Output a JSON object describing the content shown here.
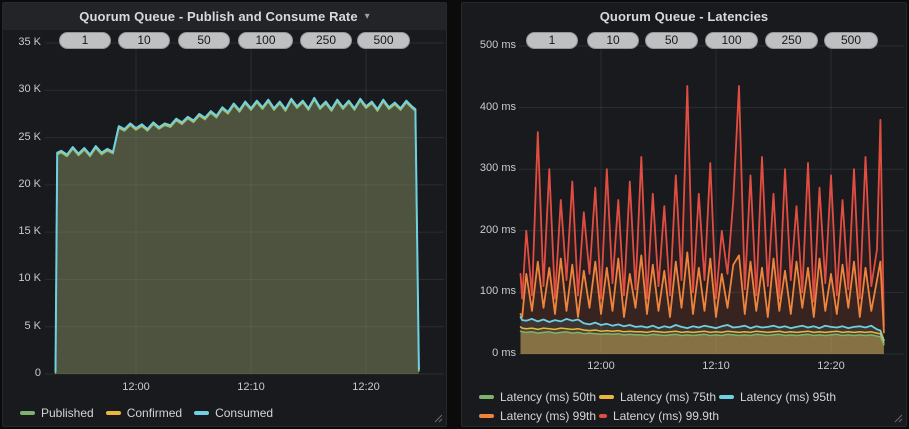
{
  "panels": [
    {
      "title": "Quorum Queue - Publish and Consume Rate",
      "menu_caret": "▾",
      "pills": [
        "1",
        "10",
        "50",
        "100",
        "250",
        "500"
      ],
      "y_axis": {
        "ticks": [
          "35 K",
          "30 K",
          "25 K",
          "20 K",
          "15 K",
          "10 K",
          "5 K",
          "0"
        ]
      },
      "x_axis": {
        "ticks": [
          "12:00",
          "12:10",
          "12:20"
        ]
      },
      "legend_rows": [
        [
          {
            "label": "Published",
            "color": "#7EB26D"
          },
          {
            "label": "Confirmed",
            "color": "#EAB839"
          },
          {
            "label": "Consumed",
            "color": "#6ED0E0"
          }
        ]
      ]
    },
    {
      "title": "Quorum Queue - Latencies",
      "menu_caret": "",
      "pills": [
        "1",
        "10",
        "50",
        "100",
        "250",
        "500"
      ],
      "y_axis": {
        "ticks": [
          "500 ms",
          "400 ms",
          "300 ms",
          "200 ms",
          "100 ms",
          "0 ms"
        ]
      },
      "x_axis": {
        "ticks": [
          "12:00",
          "12:10",
          "12:20"
        ]
      },
      "legend_rows": [
        [
          {
            "label": "Latency (ms) 50th",
            "color": "#7EB26D"
          },
          {
            "label": "Latency (ms) 75th",
            "color": "#EAB839"
          },
          {
            "label": "Latency (ms) 95th",
            "color": "#6ED0E0"
          }
        ],
        [
          {
            "label": "Latency (ms) 99th",
            "color": "#EF843C"
          },
          {
            "label": "Latency (ms) 99.9th",
            "color": "#E24D42"
          }
        ]
      ]
    }
  ],
  "chart_data": [
    {
      "type": "area",
      "title": "Quorum Queue - Publish and Consume Rate",
      "x_start_time": "11:53",
      "x_tick_labels": [
        "12:00",
        "12:10",
        "12:20"
      ],
      "x_tick_minutes": [
        7,
        17,
        27
      ],
      "ylim": [
        0,
        35000
      ],
      "y_tick_step": 5000,
      "grid": true,
      "legend_position": "bottom",
      "x_minutes": [
        0,
        0.15,
        0.5,
        1,
        1.5,
        2,
        2.5,
        3,
        3.5,
        4,
        4.5,
        5,
        5.5,
        6,
        6.5,
        7,
        7.5,
        8,
        8.5,
        9,
        9.5,
        10,
        10.5,
        11,
        11.5,
        12,
        12.5,
        13,
        13.5,
        14,
        14.5,
        15,
        15.5,
        16,
        16.5,
        17,
        17.5,
        18,
        18.5,
        19,
        19.5,
        20,
        20.5,
        21,
        21.5,
        22,
        22.5,
        23,
        23.5,
        24,
        24.5,
        25,
        25.5,
        26,
        26.5,
        27,
        27.5,
        28,
        28.5,
        29,
        29.5,
        30,
        30.5,
        31,
        31.3,
        31.6
      ],
      "series": [
        {
          "name": "Published",
          "color": "#7EB26D",
          "width": 1.4,
          "derive_from": "Consumed",
          "offset": -220
        },
        {
          "name": "Confirmed",
          "color": "#EAB839",
          "width": 1.4,
          "derive_from": "Consumed",
          "offset": -110
        },
        {
          "name": "Consumed",
          "color": "#6ED0E0",
          "width": 2,
          "fill": "rgba(143,153,105,0.45)",
          "values": [
            300,
            23400,
            23600,
            23200,
            24000,
            23300,
            23900,
            23200,
            24100,
            23400,
            23800,
            23500,
            26200,
            25900,
            26500,
            26000,
            26400,
            25900,
            26600,
            26100,
            26500,
            26300,
            27000,
            26600,
            27200,
            26800,
            27500,
            27100,
            27800,
            27300,
            28200,
            27700,
            28600,
            27900,
            28800,
            28100,
            28900,
            28200,
            29000,
            28100,
            28800,
            28000,
            29100,
            28300,
            28900,
            28100,
            29200,
            28200,
            28800,
            28000,
            29000,
            28200,
            28900,
            28100,
            29100,
            28300,
            28800,
            28000,
            29000,
            28200,
            28700,
            28100,
            28900,
            28300,
            28000,
            500
          ]
        }
      ]
    },
    {
      "type": "line",
      "title": "Quorum Queue - Latencies",
      "x_start_time": "11:53",
      "x_tick_labels": [
        "12:00",
        "12:10",
        "12:20"
      ],
      "x_tick_minutes": [
        7,
        17,
        27
      ],
      "ylim": [
        0,
        500
      ],
      "y_tick_step": 100,
      "grid": true,
      "legend_position": "bottom",
      "x_minutes": [
        0,
        0.15,
        0.5,
        1,
        1.5,
        2,
        2.5,
        3,
        3.5,
        4,
        4.5,
        5,
        5.5,
        6,
        6.5,
        7,
        7.5,
        8,
        8.5,
        9,
        9.5,
        10,
        10.5,
        11,
        11.5,
        12,
        12.5,
        13,
        13.5,
        14,
        14.5,
        15,
        15.5,
        16,
        16.5,
        17,
        17.5,
        18,
        18.5,
        19,
        19.5,
        20,
        20.5,
        21,
        21.5,
        22,
        22.5,
        23,
        23.5,
        24,
        24.5,
        25,
        25.5,
        26,
        26.5,
        27,
        27.5,
        28,
        28.5,
        29,
        29.5,
        30,
        30.5,
        31,
        31.3,
        31.6
      ],
      "series": [
        {
          "name": "Latency (ms) 99.9th",
          "color": "#E24D42",
          "width": 1.8,
          "fill": "rgba(226,77,66,0.08)",
          "values": [
            130,
            90,
            200,
            95,
            360,
            110,
            300,
            90,
            250,
            120,
            280,
            95,
            230,
            130,
            270,
            90,
            300,
            115,
            250,
            95,
            280,
            105,
            320,
            90,
            260,
            110,
            240,
            95,
            290,
            120,
            435,
            100,
            260,
            120,
            310,
            90,
            200,
            130,
            250,
            435,
            105,
            290,
            95,
            320,
            110,
            260,
            90,
            300,
            120,
            240,
            100,
            310,
            85,
            270,
            115,
            290,
            95,
            250,
            105,
            300,
            90,
            320,
            110,
            170,
            380,
            45
          ]
        },
        {
          "name": "Latency (ms) 99th",
          "color": "#EF843C",
          "width": 1.8,
          "fill": "rgba(239,132,60,0.08)",
          "values": [
            65,
            60,
            130,
            70,
            150,
            75,
            140,
            65,
            155,
            70,
            145,
            60,
            135,
            75,
            150,
            65,
            140,
            70,
            155,
            60,
            130,
            75,
            160,
            65,
            145,
            70,
            135,
            60,
            150,
            75,
            165,
            65,
            140,
            70,
            155,
            60,
            130,
            75,
            145,
            160,
            65,
            150,
            70,
            140,
            60,
            155,
            70,
            135,
            65,
            150,
            75,
            140,
            60,
            155,
            70,
            130,
            65,
            145,
            75,
            150,
            60,
            140,
            70,
            120,
            150,
            35
          ]
        },
        {
          "name": "Latency (ms) 95th",
          "color": "#6ED0E0",
          "width": 1.8,
          "fill": "rgba(110,208,224,0.10)",
          "values": [
            60,
            55,
            54,
            57,
            53,
            56,
            52,
            55,
            53,
            57,
            54,
            56,
            50,
            48,
            51,
            47,
            49,
            46,
            48,
            45,
            47,
            44,
            45,
            43,
            46,
            42,
            45,
            43,
            47,
            44,
            42,
            45,
            43,
            46,
            44,
            42,
            45,
            47,
            43,
            44,
            46,
            42,
            45,
            43,
            44,
            46,
            43,
            45,
            42,
            44,
            46,
            43,
            45,
            42,
            46,
            44,
            43,
            45,
            42,
            44,
            45,
            43,
            46,
            40,
            38,
            22
          ]
        },
        {
          "name": "Latency (ms) 75th",
          "color": "#EAB839",
          "width": 1.5,
          "fill": "rgba(234,184,57,0.10)",
          "values": [
            44,
            42,
            41,
            42,
            40,
            42,
            41,
            40,
            42,
            41,
            40,
            41,
            39,
            38,
            39,
            37,
            38,
            37,
            38,
            36,
            37,
            36,
            36,
            35,
            37,
            36,
            35,
            36,
            37,
            35,
            36,
            35,
            36,
            37,
            35,
            36,
            35,
            37,
            36,
            35,
            36,
            35,
            37,
            36,
            35,
            36,
            37,
            35,
            36,
            35,
            36,
            37,
            35,
            36,
            35,
            36,
            37,
            35,
            36,
            35,
            36,
            35,
            36,
            34,
            33,
            18
          ]
        },
        {
          "name": "Latency (ms) 50th",
          "color": "#7EB26D",
          "width": 1.5,
          "fill": "rgba(205,170,90,0.45)",
          "values": [
            37,
            36,
            35,
            36,
            34,
            35,
            36,
            34,
            35,
            36,
            34,
            35,
            33,
            34,
            33,
            32,
            33,
            32,
            33,
            31,
            32,
            31,
            31,
            30,
            32,
            31,
            30,
            31,
            32,
            30,
            31,
            30,
            31,
            32,
            30,
            31,
            30,
            32,
            31,
            30,
            31,
            30,
            32,
            31,
            30,
            31,
            32,
            30,
            31,
            30,
            31,
            32,
            30,
            31,
            30,
            31,
            32,
            30,
            31,
            30,
            31,
            30,
            31,
            29,
            28,
            15
          ]
        }
      ]
    }
  ]
}
